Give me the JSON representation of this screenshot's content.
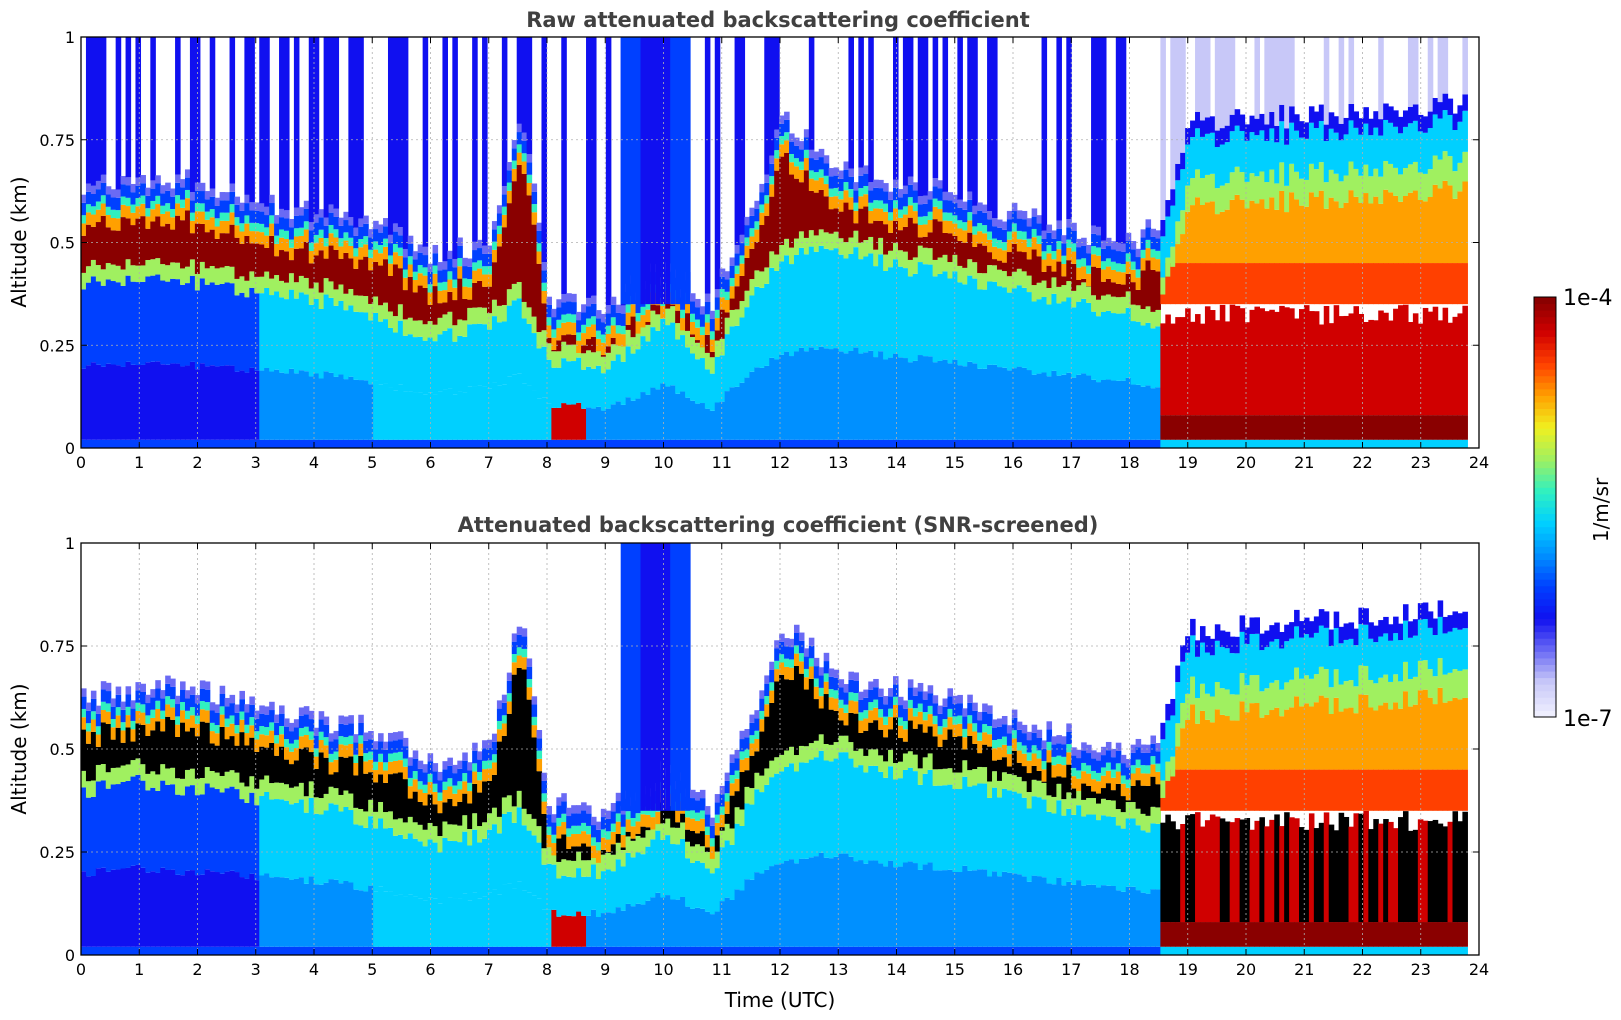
{
  "chart_data": [
    {
      "type": "heatmap",
      "title": "Raw attenuated backscattering coefficient",
      "xlabel": "",
      "ylabel": "Altitude (km)",
      "xlim": [
        0,
        24
      ],
      "ylim": [
        0,
        1
      ],
      "x_ticks": [
        "0",
        "1",
        "2",
        "3",
        "4",
        "5",
        "6",
        "7",
        "8",
        "9",
        "10",
        "11",
        "12",
        "13",
        "14",
        "15",
        "16",
        "17",
        "18",
        "19",
        "20",
        "21",
        "22",
        "23",
        "24"
      ],
      "y_ticks": [
        "0",
        "0.25",
        "0.5",
        "0.75",
        "1"
      ],
      "grid": true,
      "variant": "raw",
      "data_end_hour": 23.8,
      "layer_top_km": [
        [
          0,
          0.58
        ],
        [
          1,
          0.6
        ],
        [
          2,
          0.6
        ],
        [
          3,
          0.55
        ],
        [
          4,
          0.52
        ],
        [
          5,
          0.5
        ],
        [
          6,
          0.42
        ],
        [
          7,
          0.45
        ],
        [
          7.5,
          0.78
        ],
        [
          8,
          0.32
        ],
        [
          9,
          0.3
        ],
        [
          10,
          0.4
        ],
        [
          10.8,
          0.3
        ],
        [
          11.5,
          0.55
        ],
        [
          12,
          0.75
        ],
        [
          12.5,
          0.7
        ],
        [
          13,
          0.62
        ],
        [
          14,
          0.6
        ],
        [
          15,
          0.57
        ],
        [
          16,
          0.52
        ],
        [
          17,
          0.48
        ],
        [
          18,
          0.45
        ],
        [
          18.5,
          0.5
        ],
        [
          19,
          0.75
        ],
        [
          23.8,
          0.8
        ]
      ],
      "layer_base_km": [
        [
          0,
          0.4
        ],
        [
          1,
          0.42
        ],
        [
          2,
          0.4
        ],
        [
          3,
          0.38
        ],
        [
          4,
          0.36
        ],
        [
          5,
          0.32
        ],
        [
          6,
          0.26
        ],
        [
          7,
          0.3
        ],
        [
          7.5,
          0.35
        ],
        [
          8,
          0.2
        ],
        [
          9,
          0.2
        ],
        [
          10,
          0.3
        ],
        [
          10.8,
          0.2
        ],
        [
          11.5,
          0.38
        ],
        [
          12,
          0.45
        ],
        [
          12.5,
          0.48
        ],
        [
          13,
          0.48
        ],
        [
          14,
          0.44
        ],
        [
          15,
          0.42
        ],
        [
          16,
          0.38
        ],
        [
          17,
          0.35
        ],
        [
          18,
          0.32
        ],
        [
          18.5,
          0.3
        ]
      ]
    },
    {
      "type": "heatmap",
      "title": "Attenuated backscattering coefficient (SNR-screened)",
      "xlabel": "Time (UTC)",
      "ylabel": "Altitude (km)",
      "xlim": [
        0,
        24
      ],
      "ylim": [
        0,
        1
      ],
      "x_ticks": [
        "0",
        "1",
        "2",
        "3",
        "4",
        "5",
        "6",
        "7",
        "8",
        "9",
        "10",
        "11",
        "12",
        "13",
        "14",
        "15",
        "16",
        "17",
        "18",
        "19",
        "20",
        "21",
        "22",
        "23",
        "24"
      ],
      "y_ticks": [
        "0",
        "0.25",
        "0.5",
        "0.75",
        "1"
      ],
      "grid": true,
      "variant": "screened",
      "data_end_hour": 23.8
    }
  ],
  "colorbar": {
    "label": "1/m/sr",
    "max_label": "1e-4",
    "min_label": "1e-7",
    "scale": "log",
    "range": [
      1e-07,
      0.0001
    ],
    "colors": [
      "#eeeefe",
      "#c8c8f8",
      "#6a6af4",
      "#1010f0",
      "#0040ff",
      "#0090ff",
      "#00d0ff",
      "#30f0c0",
      "#a0f060",
      "#f0f020",
      "#ffa000",
      "#ff4000",
      "#d00000",
      "#8a0000"
    ]
  }
}
